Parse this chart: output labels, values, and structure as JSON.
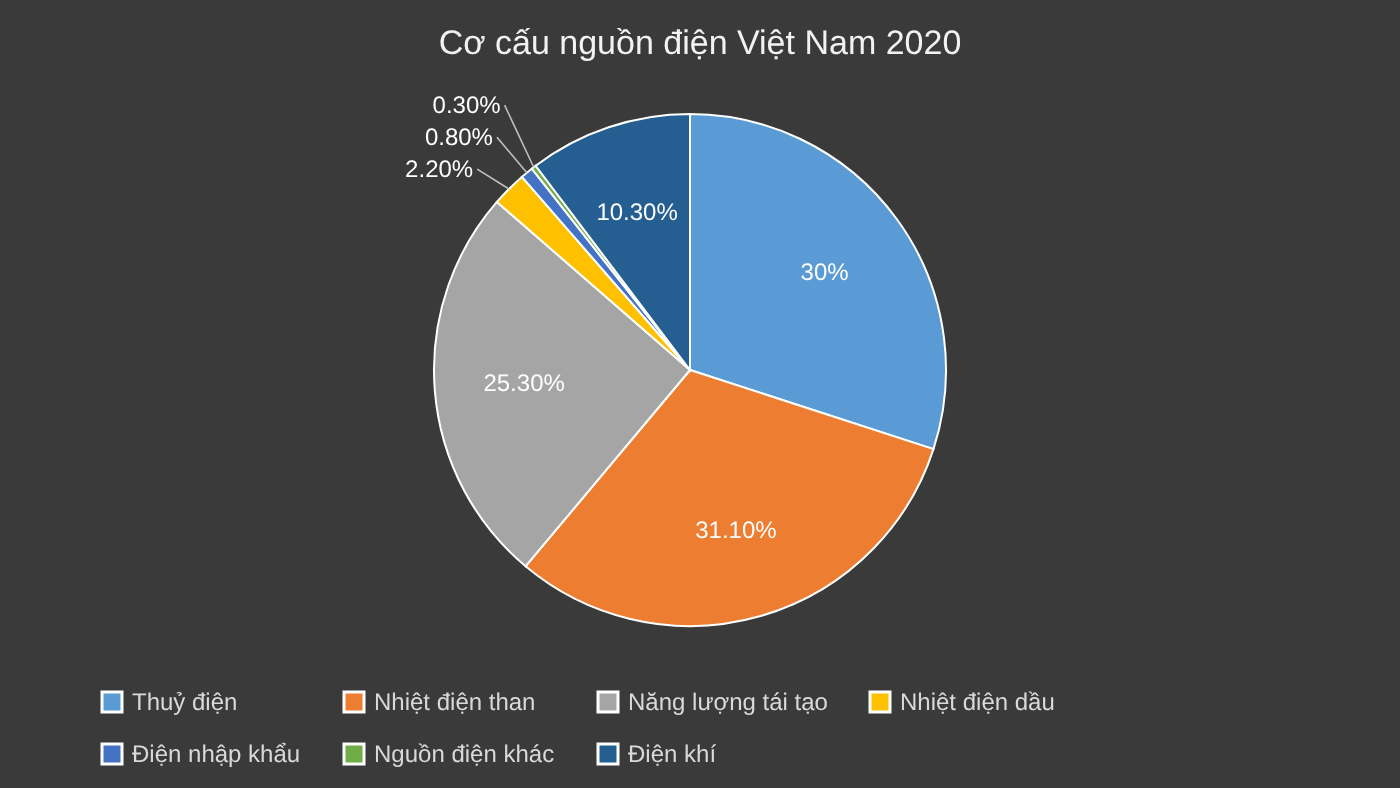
{
  "chart_data": {
    "type": "pie",
    "title": "Cơ cấu nguồn điện Việt Nam 2020",
    "categories": [
      "Thuỷ điện",
      "Nhiệt điện than",
      "Năng lượng tái tạo",
      "Nhiệt điện dầu",
      "Điện nhập khẩu",
      "Nguồn điện khác",
      "Điện khí"
    ],
    "values": [
      30,
      31.1,
      25.3,
      2.2,
      0.8,
      0.3,
      10.3
    ],
    "colors": [
      "#5b9bd5",
      "#ed7d31",
      "#a5a5a5",
      "#ffc000",
      "#4472c4",
      "#70ad47",
      "#255e91"
    ],
    "value_labels": [
      "30%",
      "31.10%",
      "25.30%",
      "2.20%",
      "0.80%",
      "0.30%",
      "10.30%"
    ],
    "legend": "bottom"
  }
}
